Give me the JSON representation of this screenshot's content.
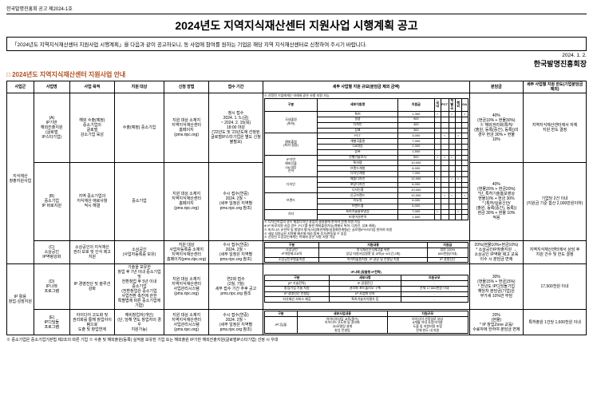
{
  "notice_no": "한국발명진흥회 공고 제2024-1호",
  "title": "2024년도 지역지식재산센터 지원사업 시행계획 공고",
  "subtitle": "「2024년도 지역지식재산센터 지원사업 시행계획」을 다음과 같이 공고하오니, 동 사업에 참여를 원하는 기업은 해당 지역 지식재산센터로 신청하여 주시기 바랍니다.",
  "date": "2024. 1. 2.",
  "org": "한국발명진흥회장",
  "section_title": "2024년도 지역지식재산센터 지원사업 안내",
  "headers": {
    "h1": "사업군",
    "h2": "사업명",
    "h3": "사업 목적",
    "h4": "지원 대상",
    "h5": "신청 방법",
    "h6": "접수 기간",
    "h7": "세부 사업별 지원 규모(분담금 제외 금액)",
    "h8": "분담금",
    "h9": "세부 사업별 지원 한도(기업분담금 제외)"
  },
  "group1": {
    "name": "지식재산\n창출지원사업",
    "rowA": {
      "name": "(A)\nIP기반\n해외진출지원\n(글로벌\nIP스타기업)",
      "purpose": "해외 수출(예정)\n중소기업의\n글로벌\n강소기업 육성",
      "target": "수출(예정) 중소기업",
      "method": "지원 대상 소재지\n지역지식재산센터\n홈페이지\n(pms.ripc.org)",
      "period": "정시 접수\n2024. 1. 5.(금)\n~ 2024. 2. 15(목)\n18:00 마감\n('22년도 및 '23년도에 선정된\n글로벌IP스타기업은 별도 신청\n불필요)",
      "share": "40%\n(현금10% + 현물30%)\n※ 해외권리화(특허/\n(출원, 등록(중간), 등록))의\n경우 현금 30% + 현물\n10%",
      "limit": "지역지식재산센터에서 자체\n지원 한도 결정"
    },
    "rowB": {
      "name": "(B)\n중소기업\nIP 바로지원",
      "purpose": "지역 중소기업의\n지식재산 애로사항\n적시 해결",
      "target": "중소기업",
      "method": "지원 대상 소재지\n지역지식재산센터\n홈페이지\n(pms.ripc.org)",
      "period": "수시 접수(연중)\n2024. 2월 ~\n(세부 일정은 지역별\npms.ripc.org 참조)",
      "share": "40%\n(현물20% + 현금20%)\n*단, 특허기술홍보영상\n현물10% + 현금 30%\n* (특허/실용신안/\n(출원, 등록(중간), 등록))\n현금 30% + 현물 10%\n적용",
      "limit": "기업당 2건 이내\n(지원금 기준 합산 2,000만원이하)"
    },
    "rowC": {
      "name": "(C)\n소상공인\nIP역량강화",
      "purpose": "소상공인의 지식재산\n권리 보호 및 인식 제고\n지원",
      "target": "소상공인\n(사업자등록증 보유)",
      "method": "지원 대상\n사업자등록증 소재지\n지역지식재산센터\n홈페이지(pms.ripc.org)",
      "period": "수시 접수(연중)\n2024. 2월 ~\n(세부 일정은 지역별\npms.ripc.org 참조)",
      "share": "20%(현물10%+현금10%)\n* 소상공인IP창출지원 →\n소상공인 IP역량 제고 교육\n이수 시 분담금 면제",
      "limit": "지역지식재산센터에서 상담 후\n지원 건수 및 한도 결정"
    }
  },
  "group2": {
    "name": "IP 활용\n창업·성장지원",
    "rowD": {
      "name": "(D)\nIP나래\n프로그램",
      "purpose": "IP 경영진단 및 솔루션\n강화",
      "target": "기술을 보유한\n창업 후 7년 이내 중소기업 및\n전환창업 후 5년 이내\n중소기업\n(전환창업은 중소기업\n사업전환 촉진에 관한\n특별법에 따른 중소기업에 기함)",
      "method": "지원 대상 소재지\n지역지식재산센터\n사업관리시스템\n(pms.ripc.org)",
      "period": "연2회 접수\n(2월, 7월)\n세부 접수 기간 추후 공고\npms.ripc.org 참조",
      "share": "30%\n(현물15% + 현금15%)\n* 전년도 IP디딤돌기업\n해당자 분담금(기업)은\n부가세 10%만 부담",
      "limit": "17,500천원 이내"
    },
    "rowE": {
      "name": "(E)\nIP디딤돌\n프로그램",
      "purpose": "아이디어 고도화 및\n권리화를 통해 창업아이템으로\n도출 및 창업연계",
      "target": "예비창업자(개인)\n(단, 당해 연도 창업자의 경우\n지원가능)",
      "method": "지원 대상 소재지\n지역지식재산센터\n사업관리시스템\n(pms.ripc.org)",
      "period": "수시 접수(연중)\n2024. 2월 ~\n(세부 일정은 지역별\npms.ripc.org 참조)",
      "share": "20%\n(현물)\n* IP 창업Zone 교육/\n수료자에 한하여 분담금 면제",
      "limit": "특허출원 1건당 1,600천원 이내"
    }
  },
  "detail_note": "※ 선정된 기업에게는 아래와 같은 사항 지원 가능",
  "detail_header": {
    "c1": "구분",
    "c2": "세부지원명",
    "c3": "지원금",
    "sub": [
      "국내",
      "PCT",
      "개별국",
      "해외",
      "OA"
    ]
  },
  "details1": [
    {
      "cat": "국내출원\n(특허)",
      "items": [
        "특허",
        "실용",
        "디자인",
        "상표"
      ],
      "amt": [
        "1,300",
        "900",
        "400",
        "300"
      ],
      "marks": [
        "○",
        "",
        "○",
        "",
        "○"
      ]
    },
    {
      "cat": "해외출원\n(특허·실용)",
      "items": [
        "PCT",
        "개별국출원",
        "OA대응",
        "등록"
      ],
      "amt": [
        "3,000",
        "7,000",
        "2,000",
        "1,500"
      ],
      "marks": [
        "",
        "○",
        "",
        "○",
        ""
      ]
    },
    {
      "cat": "IP기반\n해외진출\nOA 대응\n전략",
      "items": [
        "선행기술조사",
        "특허맵",
        "브랜드개발",
        "디자인개발"
      ],
      "amt": [
        "500",
        "10,000",
        "6,000",
        "7,000"
      ],
      "marks": [
        "○",
        "○",
        "○",
        "",
        ""
      ]
    },
    {
      "cat": "디자인",
      "items": [
        "제품디자인",
        "포장디자인",
        "디자인맵"
      ],
      "amt": [
        "12,000",
        "6,000",
        "10,000"
      ],
      "marks": [
        "○",
        "",
        "○",
        "○",
        ""
      ]
    },
    {
      "cat": "브랜드",
      "items": [
        "신규브랜드",
        "리뉴얼",
        "브랜드맵"
      ],
      "amt": [
        "10,000",
        "6,000",
        "6,000"
      ],
      "marks": [
        "",
        "○",
        "○",
        "",
        "○"
      ]
    },
    {
      "cat": "기타",
      "items": [
        "특허기술홍보영상",
        "비영어권번역"
      ],
      "amt": [
        "7,000",
        "1,500"
      ],
      "marks": [
        "○",
        "",
        "",
        "○",
        ""
      ]
    }
  ],
  "notes1": [
    "※ 디자인목업의 경우 제품디자인 과업의 결과물에 한하여 연계 지원 가능",
    "※ IP 바로지원 사업 경우, PCT를 통한 해외출원가능(개별국 특허, 디자인, 상표 제외)",
    "※ 비즈니스 IP전략 및 발명의 평가(사업화연계형/실용화연계형)는 글로벌IP스타기업 한하여 지원",
    "※ 세부 지원금은 지역별 예산에 따라 범위 추가/변동될 수 있음",
    "※ 선정된 소상공인에게는 아래와 같은 사항 지원 가능"
  ],
  "details2": {
    "header": [
      "구분",
      "지원내용",
      "지원금"
    ],
    "rows": [
      [
        "소상공인\nIP역량제고교육",
        "지식재산인식제고를 위한\n상담·지원사업설명 및 교육(4~6시간,2회)",
        "정부 100%\n600천원(이내)"
      ],
      [
        "소상공인IP창출지원",
        "아이피출원지원, IP 권장 및 컨설팅 지원",
        "IP 경쟁진단"
      ]
    ]
  },
  "details3": {
    "title": "IP나래 (맞춤형 IP전략)",
    "header": [
      "구분",
      "세부사항",
      "지원규모"
    ],
    "rows": [
      [
        "[IP 기술전략]",
        "IP 경쟁진단",
        "-"
      ],
      [
        "창업기업 기술 지원",
        "권리화·포트폴리오 구축",
        "전체 17,500천원 이내"
      ],
      [
        "IP 경영진단 컨설팅",
        "IP 사업화 전략",
        "-"
      ],
      [
        "지식재산 서비스 제공",
        "특허기술가치평가 등",
        "-"
      ]
    ]
  },
  "details4": {
    "header": [
      "구분",
      "세부사업내용",
      "지원규모"
    ],
    "rows": [
      [
        "IP디딤돌",
        "아이디어상담 교육(필수)\n아이디어 고도화 및 권리화\n3D모델링 설계\n창업 컨설팅",
        "아이디어 선정일로 부터\n6개월 이내 사업아이템\n도출 및 지원비용 포함\n전체 한도 내 지원"
      ]
    ]
  },
  "footnote": "※ 중소기업은 중소기업기본법 제2조의 따른 기업    ※ 수출 및 해외출원(등록) 실적을 보유한 기업 또는 해외출원 IP기반 해외진출지원(글로벌IP스타기업) 선정 시 우대"
}
